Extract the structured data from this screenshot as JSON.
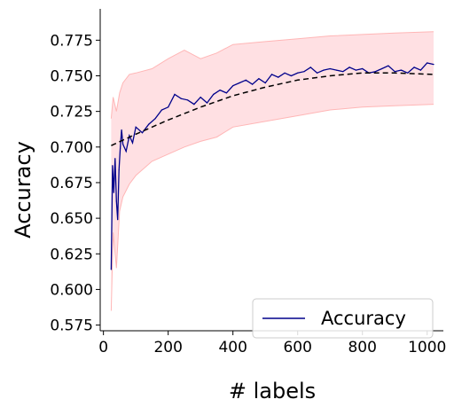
{
  "chart_data": {
    "type": "line",
    "title": "",
    "xlabel": "# labels",
    "ylabel": "Accuracy",
    "xlim": [
      -10,
      1050
    ],
    "ylim": [
      0.571,
      0.797
    ],
    "xticks": [
      0,
      200,
      400,
      600,
      800,
      1000
    ],
    "xtick_labels": [
      "0",
      "200",
      "400",
      "600",
      "800",
      "1000"
    ],
    "yticks": [
      0.575,
      0.6,
      0.625,
      0.65,
      0.675,
      0.7,
      0.725,
      0.75,
      0.775
    ],
    "ytick_labels": [
      "0.575",
      "0.600",
      "0.625",
      "0.650",
      "0.675",
      "0.700",
      "0.725",
      "0.750",
      "0.775"
    ],
    "grid": false,
    "legend": {
      "position": "bottom-right",
      "entries": [
        "Accuracy"
      ]
    },
    "colors": {
      "series": "#00008b",
      "band": "#ffb6b6",
      "band_fill": "#ffe0e3",
      "trend": "#000000"
    },
    "series": [
      {
        "name": "Accuracy",
        "style": "solid",
        "x": [
          24,
          28,
          32,
          36,
          40,
          44,
          48,
          52,
          56,
          60,
          70,
          80,
          90,
          100,
          120,
          140,
          160,
          180,
          200,
          220,
          240,
          260,
          280,
          300,
          320,
          340,
          360,
          380,
          400,
          420,
          440,
          460,
          480,
          500,
          520,
          540,
          560,
          580,
          600,
          620,
          640,
          660,
          680,
          700,
          720,
          740,
          760,
          780,
          800,
          820,
          840,
          860,
          880,
          900,
          920,
          940,
          960,
          980,
          1000,
          1020
        ],
        "y": [
          0.614,
          0.687,
          0.668,
          0.692,
          0.662,
          0.649,
          0.684,
          0.699,
          0.712,
          0.702,
          0.697,
          0.708,
          0.703,
          0.714,
          0.71,
          0.716,
          0.72,
          0.726,
          0.728,
          0.737,
          0.734,
          0.733,
          0.73,
          0.735,
          0.731,
          0.737,
          0.74,
          0.738,
          0.743,
          0.745,
          0.747,
          0.744,
          0.748,
          0.745,
          0.751,
          0.749,
          0.752,
          0.75,
          0.752,
          0.753,
          0.756,
          0.752,
          0.754,
          0.755,
          0.754,
          0.753,
          0.756,
          0.754,
          0.755,
          0.752,
          0.753,
          0.755,
          0.757,
          0.753,
          0.754,
          0.752,
          0.756,
          0.754,
          0.759,
          0.758
        ]
      },
      {
        "name": "",
        "style": "dashed",
        "x": [
          24,
          100,
          200,
          300,
          400,
          500,
          600,
          700,
          800,
          900,
          1020
        ],
        "y": [
          0.701,
          0.709,
          0.719,
          0.728,
          0.736,
          0.742,
          0.747,
          0.75,
          0.752,
          0.752,
          0.751
        ]
      }
    ],
    "band": {
      "x": [
        24,
        30,
        40,
        50,
        60,
        80,
        100,
        150,
        200,
        250,
        300,
        350,
        400,
        500,
        600,
        700,
        800,
        900,
        1020
      ],
      "upper": [
        0.72,
        0.735,
        0.725,
        0.738,
        0.745,
        0.751,
        0.752,
        0.755,
        0.762,
        0.768,
        0.762,
        0.766,
        0.772,
        0.774,
        0.776,
        0.778,
        0.779,
        0.78,
        0.781
      ],
      "lower": [
        0.585,
        0.64,
        0.615,
        0.655,
        0.665,
        0.674,
        0.68,
        0.69,
        0.695,
        0.7,
        0.704,
        0.707,
        0.714,
        0.718,
        0.722,
        0.726,
        0.728,
        0.729,
        0.73
      ]
    }
  }
}
